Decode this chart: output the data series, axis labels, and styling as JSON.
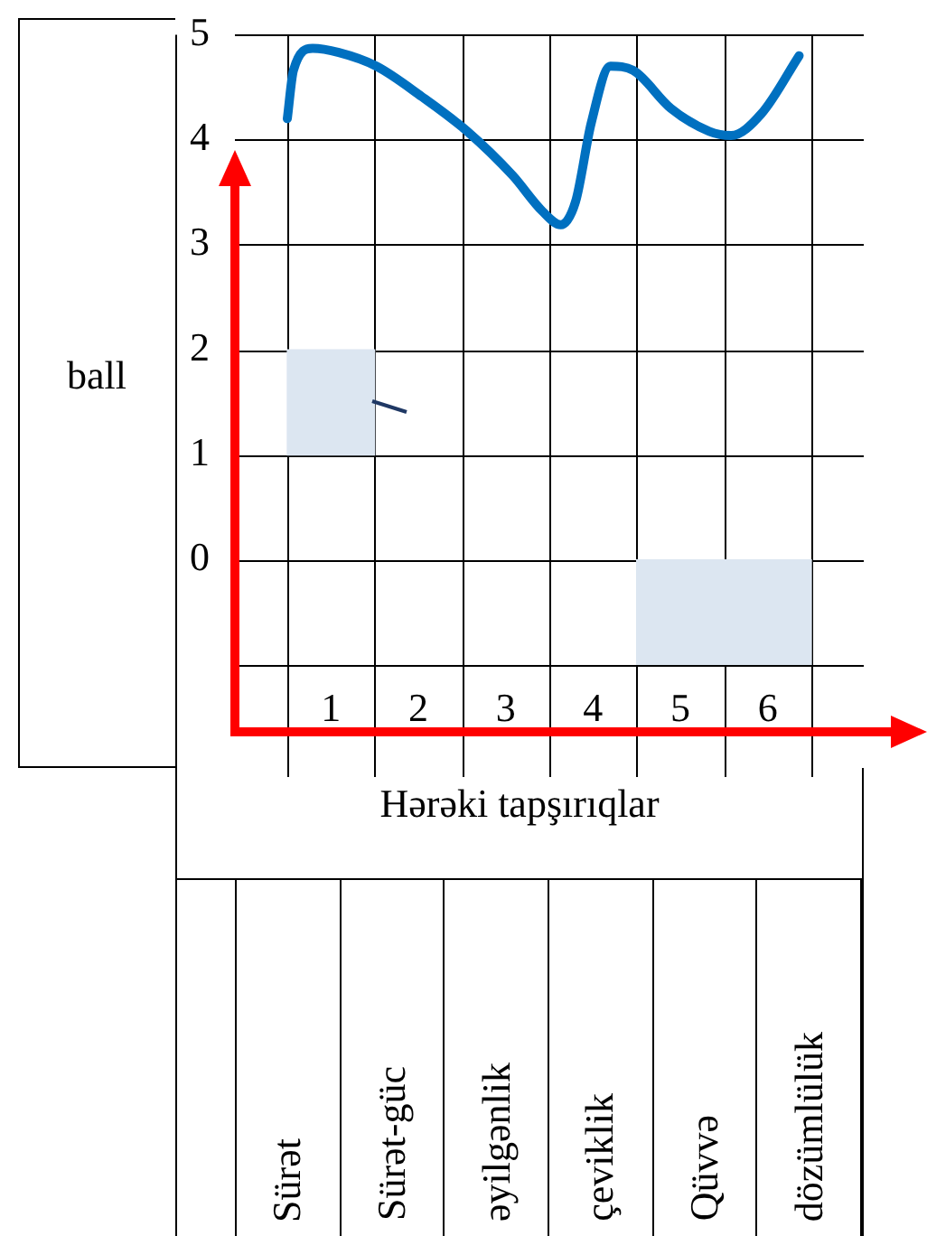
{
  "chart_data": {
    "type": "line",
    "ylabel": "ball",
    "xlabel": "Hərəki tapşırıqlar",
    "xlim": [
      0.5,
      6.5
    ],
    "ylim": [
      -1,
      5
    ],
    "xticks": [
      1,
      2,
      3,
      4,
      5,
      6
    ],
    "yticks": [
      0,
      1,
      2,
      3,
      4,
      5
    ],
    "grid": true,
    "legend": false,
    "annotations": [
      "Sürət",
      "Sürət-güc",
      "əyilgənlik",
      "çeviklik",
      "Qüvvə",
      "dözümlülük"
    ],
    "series": [
      {
        "type": "bar",
        "color": "#dce6f1",
        "x": [
          1,
          5,
          6
        ],
        "base": [
          1,
          -1,
          -1
        ],
        "values": [
          1,
          1,
          1
        ]
      },
      {
        "marker": "none",
        "line_style": "solid",
        "color": "#0070c0",
        "x": [
          0.5,
          0.57,
          0.79,
          1.09,
          1.52,
          2.04,
          2.56,
          3.08,
          3.42,
          3.63,
          3.8,
          3.98,
          4.2,
          4.46,
          4.89,
          5.33,
          5.58,
          5.93,
          6.36
        ],
        "values": [
          4.2,
          4.66,
          4.87,
          4.83,
          4.7,
          4.41,
          4.08,
          3.66,
          3.32,
          3.19,
          3.41,
          4.16,
          4.7,
          4.66,
          4.3,
          4.08,
          4.04,
          4.25,
          4.8
        ]
      }
    ]
  }
}
